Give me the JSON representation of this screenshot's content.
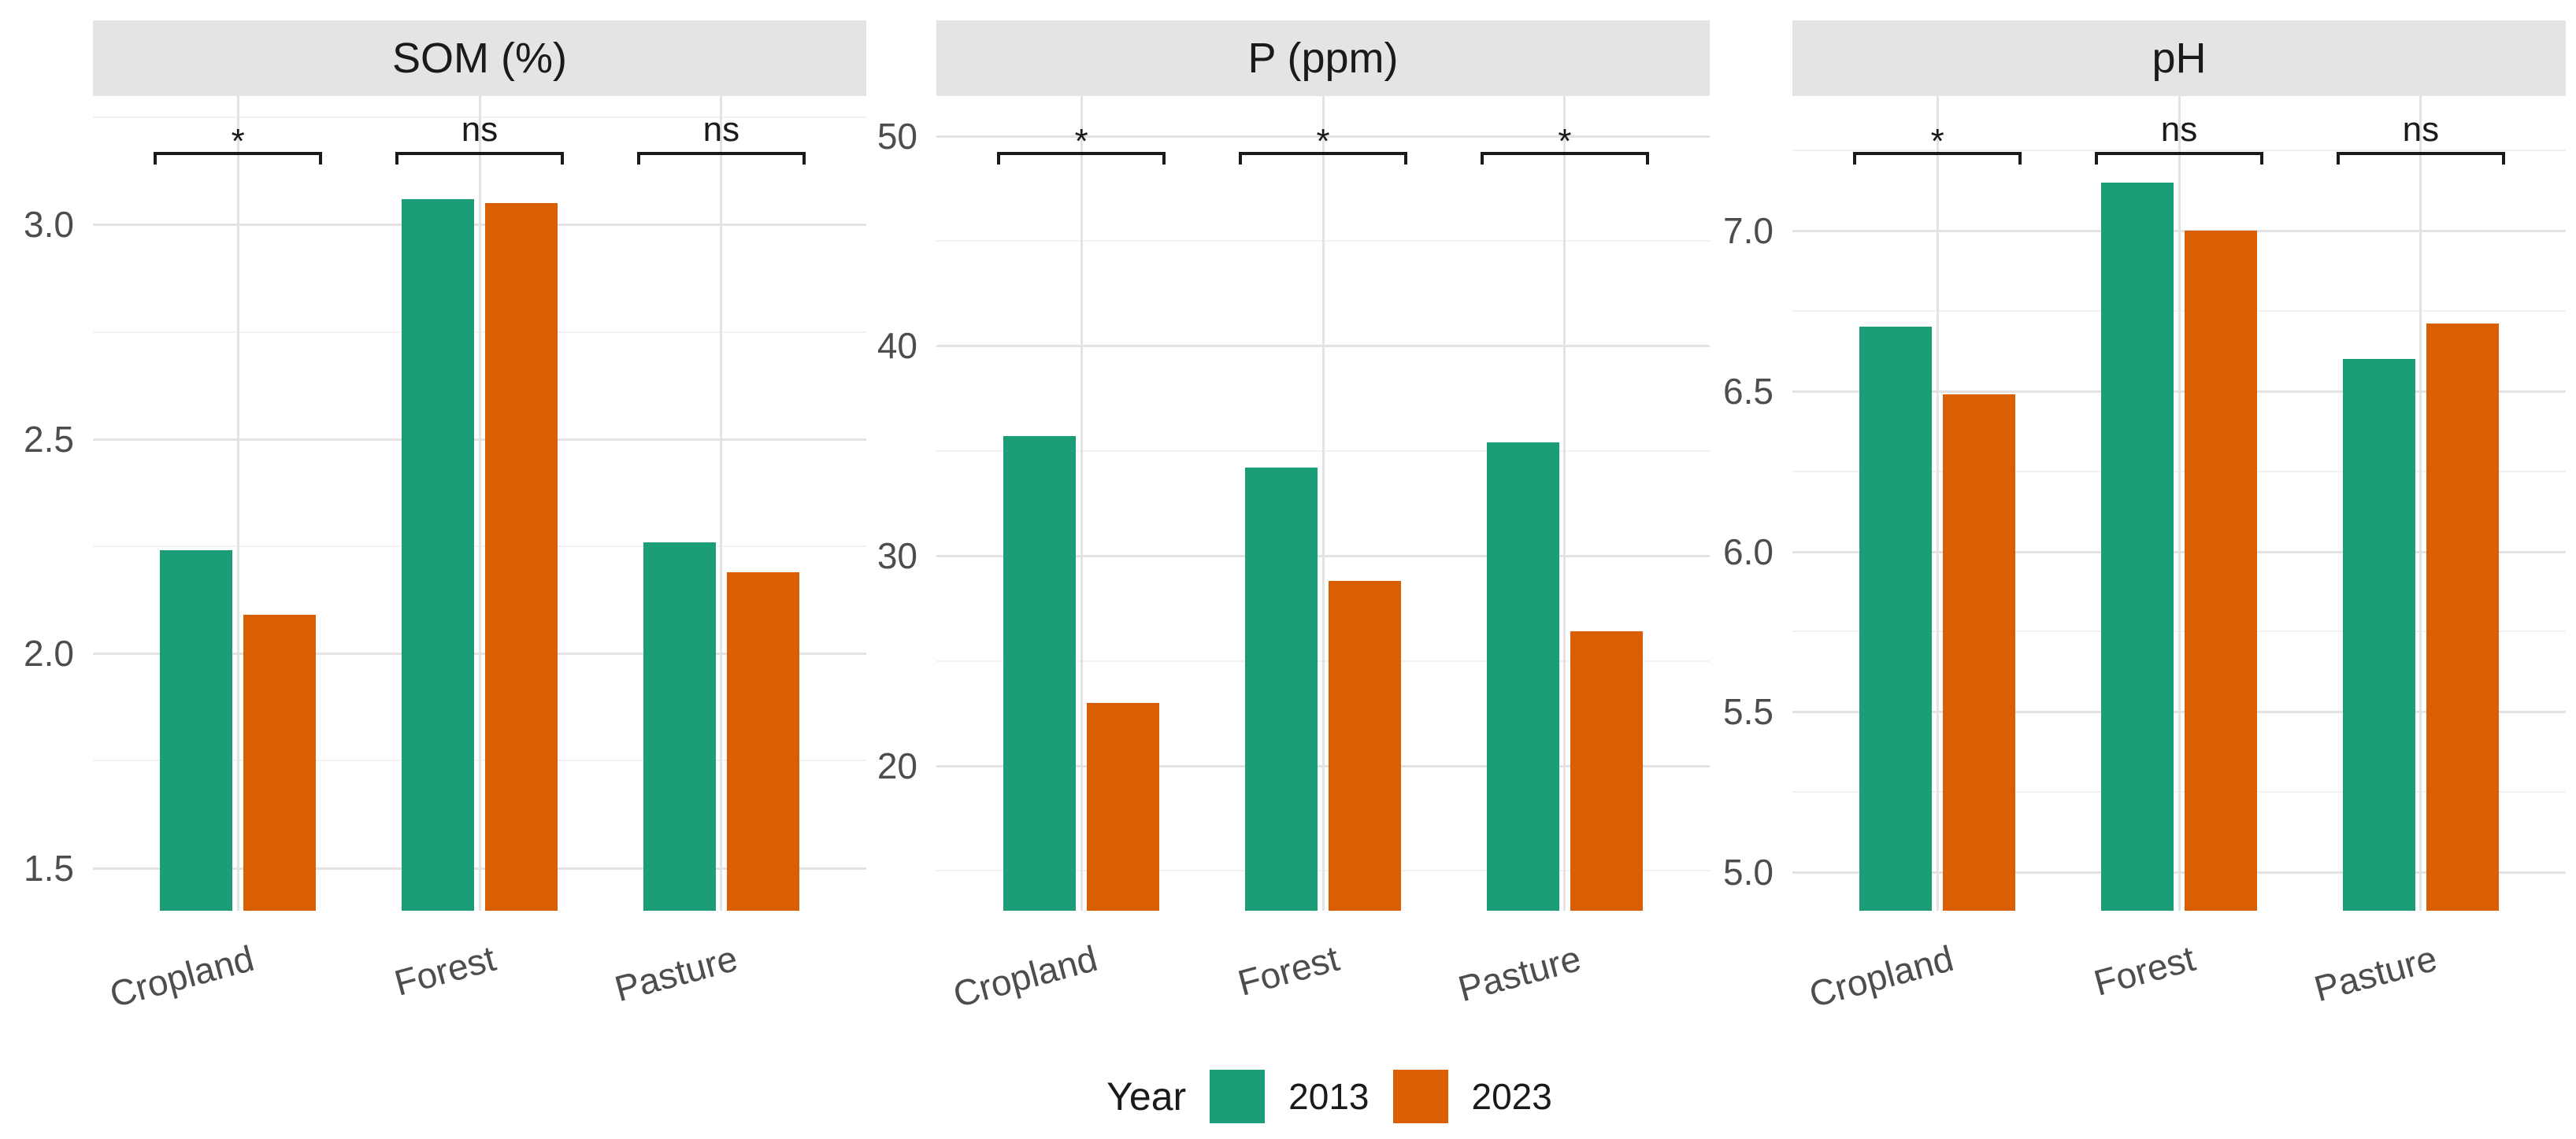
{
  "legend": {
    "title": "Year",
    "items": [
      {
        "label": "2013",
        "color": "#1b9e77"
      },
      {
        "label": "2023",
        "color": "#d95f02"
      }
    ],
    "position": "bottom"
  },
  "colors": {
    "bar_2013": "#1b9e77",
    "bar_2023": "#d95f02",
    "strip_bg": "#e4e4e4",
    "grid_major": "#e3e3e3",
    "grid_minor": "#f2f2f2",
    "axis_text": "#4d4d4d",
    "strip_text": "#1a1a1a",
    "sig_text": "#1a1a1a",
    "background": "#ffffff"
  },
  "chart_data": [
    {
      "type": "bar",
      "facet": "SOM (%)",
      "title": "SOM (%)",
      "xlabel": "",
      "ylabel": "",
      "categories": [
        "Cropland",
        "Forest",
        "Pasture"
      ],
      "series": [
        {
          "name": "2013",
          "values": [
            2.24,
            3.06,
            2.26
          ]
        },
        {
          "name": "2023",
          "values": [
            2.09,
            3.05,
            2.19
          ]
        }
      ],
      "significance": [
        "*",
        "ns",
        "ns"
      ],
      "ylim": [
        1.4,
        3.3
      ],
      "yticks": [
        {
          "v": 1.5,
          "label": "1.5"
        },
        {
          "v": 2.0,
          "label": "2.0"
        },
        {
          "v": 2.5,
          "label": "2.5"
        },
        {
          "v": 3.0,
          "label": "3.0"
        }
      ],
      "yminor": [
        1.75,
        2.25,
        2.75,
        3.25
      ],
      "grid": true,
      "legend_position": "bottom"
    },
    {
      "type": "bar",
      "facet": "P (ppm)",
      "title": "P (ppm)",
      "xlabel": "",
      "ylabel": "",
      "categories": [
        "Cropland",
        "Forest",
        "Pasture"
      ],
      "series": [
        {
          "name": "2013",
          "values": [
            35.7,
            34.2,
            35.4
          ]
        },
        {
          "name": "2023",
          "values": [
            23.0,
            28.8,
            26.4
          ]
        }
      ],
      "significance": [
        "*",
        "*",
        "*"
      ],
      "ylim": [
        13.1,
        51.9
      ],
      "yticks": [
        {
          "v": 20,
          "label": "20"
        },
        {
          "v": 30,
          "label": "30"
        },
        {
          "v": 40,
          "label": "40"
        },
        {
          "v": 50,
          "label": "50"
        }
      ],
      "yminor": [
        15,
        25,
        35,
        45
      ],
      "grid": true,
      "legend_position": "bottom"
    },
    {
      "type": "bar",
      "facet": "pH",
      "title": "pH",
      "xlabel": "",
      "ylabel": "",
      "categories": [
        "Cropland",
        "Forest",
        "Pasture"
      ],
      "series": [
        {
          "name": "2013",
          "values": [
            6.7,
            7.15,
            6.6
          ]
        },
        {
          "name": "2023",
          "values": [
            6.49,
            7.0,
            6.71
          ]
        }
      ],
      "significance": [
        "*",
        "ns",
        "ns"
      ],
      "ylim": [
        4.88,
        7.42
      ],
      "yticks": [
        {
          "v": 5.0,
          "label": "5.0"
        },
        {
          "v": 5.5,
          "label": "5.5"
        },
        {
          "v": 6.0,
          "label": "6.0"
        },
        {
          "v": 6.5,
          "label": "6.5"
        },
        {
          "v": 7.0,
          "label": "7.0"
        }
      ],
      "yminor": [
        5.25,
        5.75,
        6.25,
        6.75,
        7.25
      ],
      "grid": true,
      "legend_position": "bottom"
    }
  ]
}
